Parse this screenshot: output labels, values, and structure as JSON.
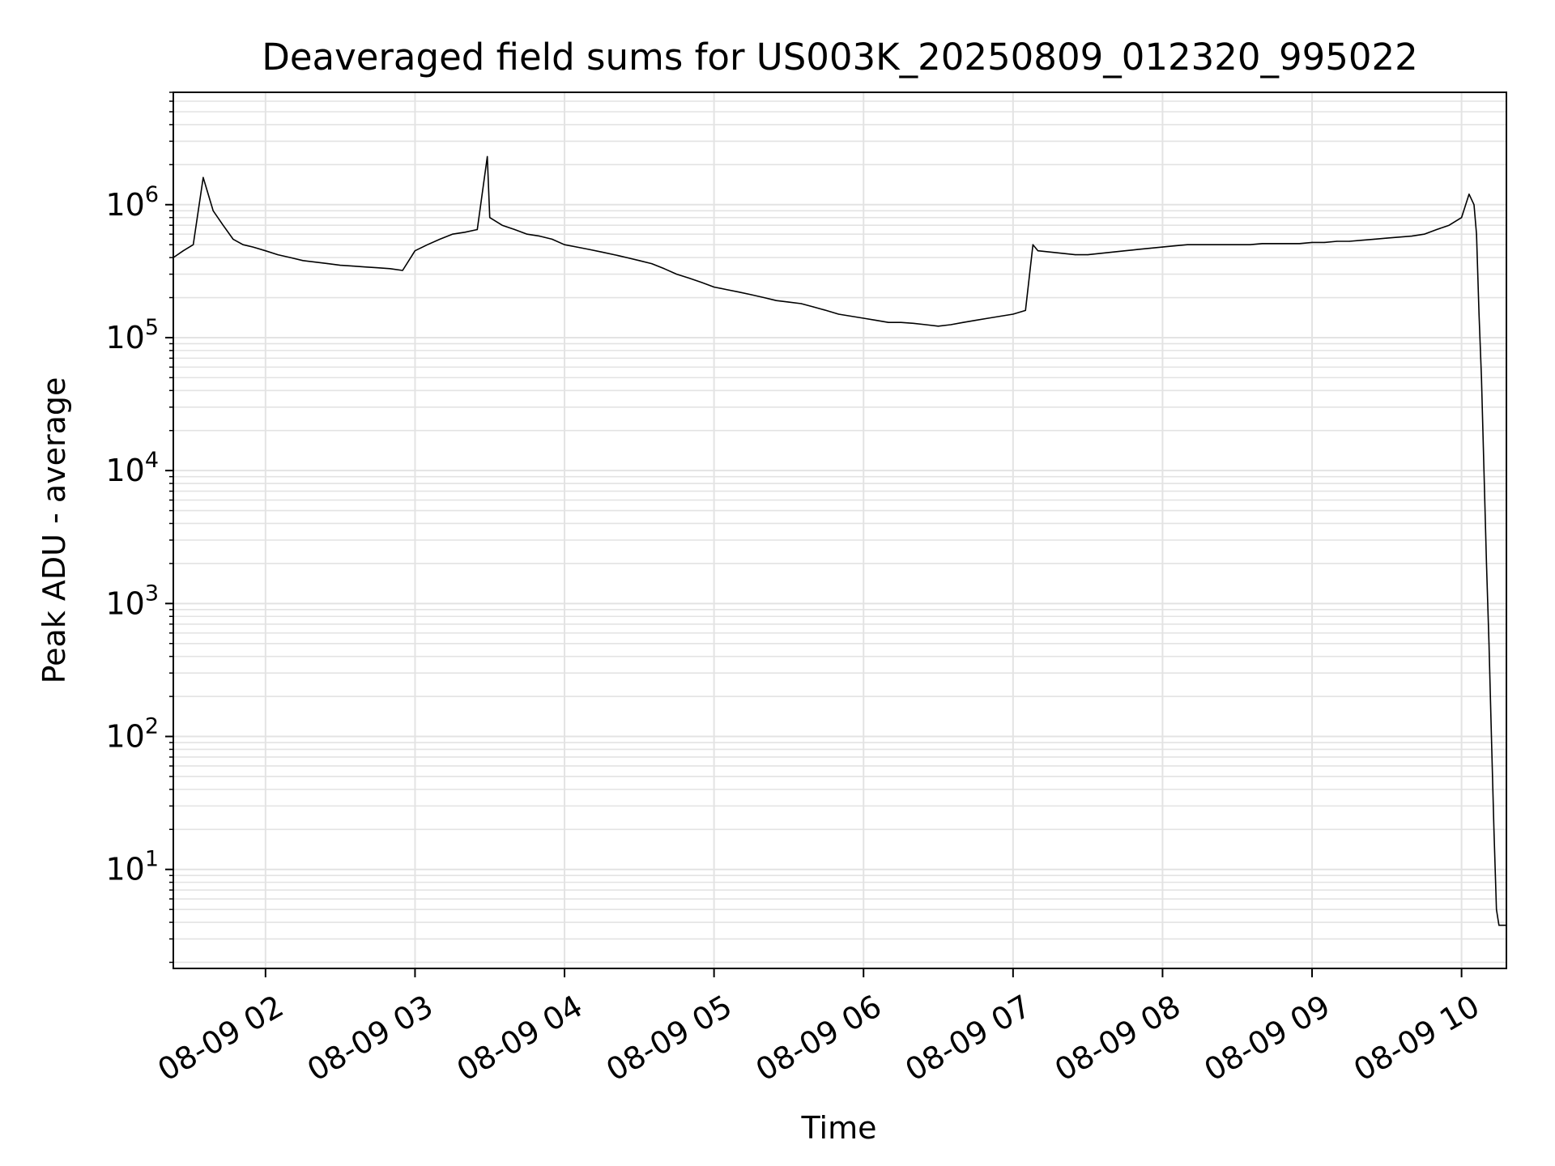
{
  "chart_data": {
    "type": "line",
    "title": "Deaveraged field sums for US003K_20250809_012320_995022",
    "xlabel": "Time",
    "ylabel": "Peak ADU - average",
    "yscale": "log",
    "grid": true,
    "grid_minor": true,
    "line_color": "#000000",
    "grid_color": "#e3e3e3",
    "xlim": [
      "2025-08-09 01:23",
      "2025-08-09 10:18"
    ],
    "ylim": [
      1.8,
      7000000
    ],
    "x_ticks": [
      {
        "value": "2025-08-09 02:00",
        "label": "08-09 02"
      },
      {
        "value": "2025-08-09 03:00",
        "label": "08-09 03"
      },
      {
        "value": "2025-08-09 04:00",
        "label": "08-09 04"
      },
      {
        "value": "2025-08-09 05:00",
        "label": "08-09 05"
      },
      {
        "value": "2025-08-09 06:00",
        "label": "08-09 06"
      },
      {
        "value": "2025-08-09 07:00",
        "label": "08-09 07"
      },
      {
        "value": "2025-08-09 08:00",
        "label": "08-09 08"
      },
      {
        "value": "2025-08-09 09:00",
        "label": "08-09 09"
      },
      {
        "value": "2025-08-09 10:00",
        "label": "08-09 10"
      }
    ],
    "y_ticks": [
      {
        "value": 10,
        "base": "10",
        "exp": "1"
      },
      {
        "value": 100,
        "base": "10",
        "exp": "2"
      },
      {
        "value": 1000,
        "base": "10",
        "exp": "3"
      },
      {
        "value": 10000,
        "base": "10",
        "exp": "4"
      },
      {
        "value": 100000,
        "base": "10",
        "exp": "5"
      },
      {
        "value": 1000000,
        "base": "10",
        "exp": "6"
      }
    ],
    "series": [
      {
        "x": [
          "2025-08-09 01:23",
          "2025-08-09 01:27",
          "2025-08-09 01:31",
          "2025-08-09 01:35",
          "2025-08-09 01:39",
          "2025-08-09 01:43",
          "2025-08-09 01:47",
          "2025-08-09 01:51",
          "2025-08-09 01:55",
          "2025-08-09 02:00",
          "2025-08-09 02:05",
          "2025-08-09 02:10",
          "2025-08-09 02:15",
          "2025-08-09 02:20",
          "2025-08-09 02:25",
          "2025-08-09 02:30",
          "2025-08-09 02:35",
          "2025-08-09 02:40",
          "2025-08-09 02:45",
          "2025-08-09 02:50",
          "2025-08-09 02:55",
          "2025-08-09 03:00",
          "2025-08-09 03:05",
          "2025-08-09 03:10",
          "2025-08-09 03:15",
          "2025-08-09 03:20",
          "2025-08-09 03:25",
          "2025-08-09 03:29",
          "2025-08-09 03:30",
          "2025-08-09 03:35",
          "2025-08-09 03:40",
          "2025-08-09 03:45",
          "2025-08-09 03:50",
          "2025-08-09 03:55",
          "2025-08-09 04:00",
          "2025-08-09 04:05",
          "2025-08-09 04:10",
          "2025-08-09 04:15",
          "2025-08-09 04:20",
          "2025-08-09 04:25",
          "2025-08-09 04:30",
          "2025-08-09 04:35",
          "2025-08-09 04:40",
          "2025-08-09 04:45",
          "2025-08-09 04:50",
          "2025-08-09 04:55",
          "2025-08-09 05:00",
          "2025-08-09 05:05",
          "2025-08-09 05:10",
          "2025-08-09 05:15",
          "2025-08-09 05:20",
          "2025-08-09 05:25",
          "2025-08-09 05:30",
          "2025-08-09 05:35",
          "2025-08-09 05:40",
          "2025-08-09 05:45",
          "2025-08-09 05:50",
          "2025-08-09 05:55",
          "2025-08-09 06:00",
          "2025-08-09 06:05",
          "2025-08-09 06:10",
          "2025-08-09 06:15",
          "2025-08-09 06:20",
          "2025-08-09 06:25",
          "2025-08-09 06:30",
          "2025-08-09 06:35",
          "2025-08-09 06:40",
          "2025-08-09 06:45",
          "2025-08-09 06:50",
          "2025-08-09 06:55",
          "2025-08-09 07:00",
          "2025-08-09 07:05",
          "2025-08-09 07:08",
          "2025-08-09 07:10",
          "2025-08-09 07:15",
          "2025-08-09 07:20",
          "2025-08-09 07:25",
          "2025-08-09 07:30",
          "2025-08-09 07:35",
          "2025-08-09 07:40",
          "2025-08-09 07:45",
          "2025-08-09 07:50",
          "2025-08-09 07:55",
          "2025-08-09 08:00",
          "2025-08-09 08:05",
          "2025-08-09 08:10",
          "2025-08-09 08:15",
          "2025-08-09 08:20",
          "2025-08-09 08:25",
          "2025-08-09 08:30",
          "2025-08-09 08:35",
          "2025-08-09 08:40",
          "2025-08-09 08:45",
          "2025-08-09 08:50",
          "2025-08-09 08:55",
          "2025-08-09 09:00",
          "2025-08-09 09:05",
          "2025-08-09 09:10",
          "2025-08-09 09:15",
          "2025-08-09 09:20",
          "2025-08-09 09:25",
          "2025-08-09 09:30",
          "2025-08-09 09:35",
          "2025-08-09 09:40",
          "2025-08-09 09:45",
          "2025-08-09 09:50",
          "2025-08-09 09:55",
          "2025-08-09 10:00",
          "2025-08-09 10:03",
          "2025-08-09 10:05",
          "2025-08-09 10:06",
          "2025-08-09 10:07",
          "2025-08-09 10:08",
          "2025-08-09 10:09",
          "2025-08-09 10:10",
          "2025-08-09 10:11",
          "2025-08-09 10:12",
          "2025-08-09 10:13",
          "2025-08-09 10:14",
          "2025-08-09 10:15",
          "2025-08-09 10:16",
          "2025-08-09 10:17",
          "2025-08-09 10:18"
        ],
        "y": [
          400000,
          450000,
          500000,
          1600000,
          900000,
          700000,
          550000,
          500000,
          480000,
          450000,
          420000,
          400000,
          380000,
          370000,
          360000,
          350000,
          345000,
          340000,
          335000,
          330000,
          320000,
          450000,
          500000,
          550000,
          600000,
          620000,
          650000,
          2300000,
          800000,
          700000,
          650000,
          600000,
          580000,
          550000,
          500000,
          480000,
          460000,
          440000,
          420000,
          400000,
          380000,
          360000,
          330000,
          300000,
          280000,
          260000,
          240000,
          230000,
          220000,
          210000,
          200000,
          190000,
          185000,
          180000,
          170000,
          160000,
          150000,
          145000,
          140000,
          135000,
          130000,
          130000,
          128000,
          125000,
          122000,
          125000,
          130000,
          135000,
          140000,
          145000,
          150000,
          160000,
          500000,
          450000,
          440000,
          430000,
          420000,
          420000,
          430000,
          440000,
          450000,
          460000,
          470000,
          480000,
          490000,
          500000,
          500000,
          500000,
          500000,
          500000,
          500000,
          510000,
          510000,
          510000,
          510000,
          520000,
          520000,
          530000,
          530000,
          540000,
          550000,
          560000,
          570000,
          580000,
          600000,
          650000,
          700000,
          800000,
          1200000,
          1000000,
          600000,
          150000,
          50000,
          10000,
          2000,
          500,
          100,
          20,
          5,
          3.8,
          3.8,
          3.8,
          3.8
        ]
      }
    ]
  }
}
